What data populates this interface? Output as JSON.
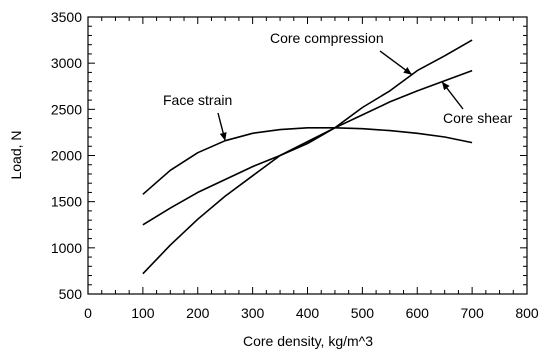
{
  "chart_data": {
    "type": "line",
    "xlabel": "Core density, kg/m^3",
    "ylabel": "Load, N",
    "xlim": [
      0,
      800
    ],
    "ylim": [
      500,
      3500
    ],
    "xticks": [
      "0",
      "100",
      "200",
      "300",
      "400",
      "500",
      "600",
      "700",
      "800"
    ],
    "yticks": [
      "500",
      "1000",
      "1500",
      "2000",
      "2500",
      "3000",
      "3500"
    ],
    "grid": false,
    "legend": "none",
    "series": [
      {
        "name": "Face strain",
        "x": [
          100,
          150,
          200,
          250,
          300,
          350,
          400,
          450,
          500,
          550,
          600,
          650,
          700
        ],
        "y": [
          1580,
          1840,
          2030,
          2160,
          2240,
          2280,
          2300,
          2300,
          2290,
          2270,
          2240,
          2200,
          2140
        ]
      },
      {
        "name": "Core shear",
        "x": [
          100,
          150,
          200,
          250,
          300,
          350,
          400,
          450,
          500,
          550,
          600,
          650,
          700
        ],
        "y": [
          1250,
          1430,
          1600,
          1740,
          1880,
          2000,
          2130,
          2300,
          2440,
          2580,
          2700,
          2810,
          2920
        ]
      },
      {
        "name": "Core compression",
        "x": [
          100,
          150,
          200,
          250,
          300,
          350,
          400,
          450,
          500,
          550,
          600,
          650,
          700
        ],
        "y": [
          720,
          1030,
          1310,
          1560,
          1780,
          2000,
          2150,
          2300,
          2520,
          2700,
          2920,
          3080,
          3250
        ]
      }
    ],
    "annotations": [
      {
        "text": "Face strain",
        "target_series": 0
      },
      {
        "text": "Core compression",
        "target_series": 2
      },
      {
        "text": "Core shear",
        "target_series": 1
      }
    ]
  }
}
